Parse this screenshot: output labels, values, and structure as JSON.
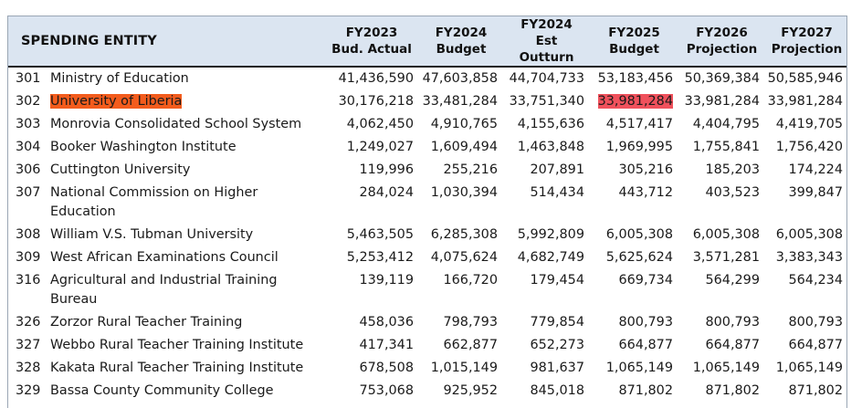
{
  "header": {
    "entity": "SPENDING ENTITY",
    "columns": [
      {
        "line1": "FY2023",
        "line2": "Bud. Actual"
      },
      {
        "line1": "FY2024",
        "line2": "Budget"
      },
      {
        "line1": "FY2024",
        "line2": "Est Outturn"
      },
      {
        "line1": "FY2025",
        "line2": "Budget"
      },
      {
        "line1": "FY2026",
        "line2": "Projection"
      },
      {
        "line1": "FY2027",
        "line2": "Projection"
      }
    ]
  },
  "rows": [
    {
      "code": "301",
      "name": "Ministry of Education",
      "values": [
        "41,436,590",
        "47,603,858",
        "44,704,733",
        "53,183,456",
        "50,369,384",
        "50,585,946"
      ]
    },
    {
      "code": "302",
      "name": "University of Liberia",
      "values": [
        "30,176,218",
        "33,481,284",
        "33,751,340",
        "33,981,284",
        "33,981,284",
        "33,981,284"
      ]
    },
    {
      "code": "303",
      "name": "Monrovia Consolidated School System",
      "values": [
        "4,062,450",
        "4,910,765",
        "4,155,636",
        "4,517,417",
        "4,404,795",
        "4,419,705"
      ]
    },
    {
      "code": "304",
      "name": "Booker Washington Institute",
      "values": [
        "1,249,027",
        "1,609,494",
        "1,463,848",
        "1,969,995",
        "1,755,841",
        "1,756,420"
      ]
    },
    {
      "code": "306",
      "name": "Cuttington University",
      "values": [
        "119,996",
        "255,216",
        "207,891",
        "305,216",
        "185,203",
        "174,224"
      ]
    },
    {
      "code": "307",
      "name": "National Commission on Higher Education",
      "values": [
        "284,024",
        "1,030,394",
        "514,434",
        "443,712",
        "403,523",
        "399,847"
      ]
    },
    {
      "code": "308",
      "name": "William V.S. Tubman University",
      "values": [
        "5,463,505",
        "6,285,308",
        "5,992,809",
        "6,005,308",
        "6,005,308",
        "6,005,308"
      ]
    },
    {
      "code": "309",
      "name": "West African Examinations Council",
      "values": [
        "5,253,412",
        "4,075,624",
        "4,682,749",
        "5,625,624",
        "3,571,281",
        "3,383,343"
      ]
    },
    {
      "code": "316",
      "name": "Agricultural and Industrial Training Bureau",
      "values": [
        "139,119",
        "166,720",
        "179,454",
        "669,734",
        "564,299",
        "564,234"
      ]
    },
    {
      "code": "326",
      "name": "Zorzor Rural Teacher Training",
      "values": [
        "458,036",
        "798,793",
        "779,854",
        "800,793",
        "800,793",
        "800,793"
      ]
    },
    {
      "code": "327",
      "name": "Webbo Rural Teacher Training Institute",
      "values": [
        "417,341",
        "662,877",
        "652,273",
        "664,877",
        "664,877",
        "664,877"
      ]
    },
    {
      "code": "328",
      "name": "Kakata Rural Teacher Training Institute",
      "values": [
        "678,508",
        "1,015,149",
        "981,637",
        "1,065,149",
        "1,065,149",
        "1,065,149"
      ]
    },
    {
      "code": "329",
      "name": "Bassa County Community College",
      "values": [
        "753,068",
        "925,952",
        "845,018",
        "871,802",
        "871,802",
        "871,802"
      ]
    }
  ],
  "highlights": {
    "name_row_index": 1,
    "name_color": "#f35c1d",
    "value_row_index": 1,
    "value_col_index": 3,
    "value_color": "#f0515c"
  }
}
